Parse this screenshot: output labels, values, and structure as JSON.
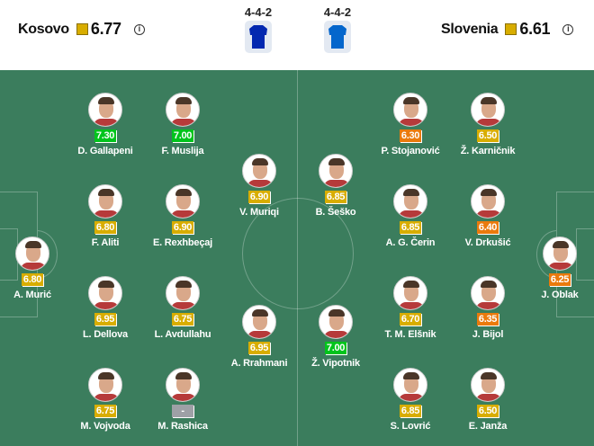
{
  "home": {
    "name": "Kosovo",
    "rating": "6.77",
    "formation": "4-4-2",
    "shirt_color": "#0328b0",
    "players": [
      {
        "name": "A. Murić",
        "rating": "6.80"
      },
      {
        "name": "D. Gallapeni",
        "rating": "7.30"
      },
      {
        "name": "F. Aliti",
        "rating": "6.80"
      },
      {
        "name": "L. Dellova",
        "rating": "6.95"
      },
      {
        "name": "M. Vojvoda",
        "rating": "6.75"
      },
      {
        "name": "F. Muslija",
        "rating": "7.00"
      },
      {
        "name": "E. Rexhbeçaj",
        "rating": "6.90"
      },
      {
        "name": "L. Avdullahu",
        "rating": "6.75"
      },
      {
        "name": "M. Rashica",
        "rating": "-"
      },
      {
        "name": "V. Muriqi",
        "rating": "6.90"
      },
      {
        "name": "A. Rrahmani",
        "rating": "6.95"
      }
    ]
  },
  "away": {
    "name": "Slovenia",
    "rating": "6.61",
    "formation": "4-4-2",
    "shirt_color": "#0466cc",
    "players": [
      {
        "name": "B. Šeško",
        "rating": "6.85"
      },
      {
        "name": "Ž. Vipotnik",
        "rating": "7.00"
      },
      {
        "name": "P. Stojanović",
        "rating": "6.30"
      },
      {
        "name": "A. G. Čerin",
        "rating": "6.85"
      },
      {
        "name": "T. M. Elšnik",
        "rating": "6.70"
      },
      {
        "name": "S. Lovrić",
        "rating": "6.85"
      },
      {
        "name": "Ž. Karničnik",
        "rating": "6.50"
      },
      {
        "name": "V. Drkušić",
        "rating": "6.40"
      },
      {
        "name": "J. Bijol",
        "rating": "6.35"
      },
      {
        "name": "E. Janža",
        "rating": "6.50"
      },
      {
        "name": "J. Oblak",
        "rating": "6.25"
      }
    ]
  },
  "info_icon": "info-icon",
  "rating_colors": {
    "green": "#00c41c",
    "gold": "#d8ad00",
    "orange": "#ea7a0c",
    "none": "#9ea0a6"
  }
}
